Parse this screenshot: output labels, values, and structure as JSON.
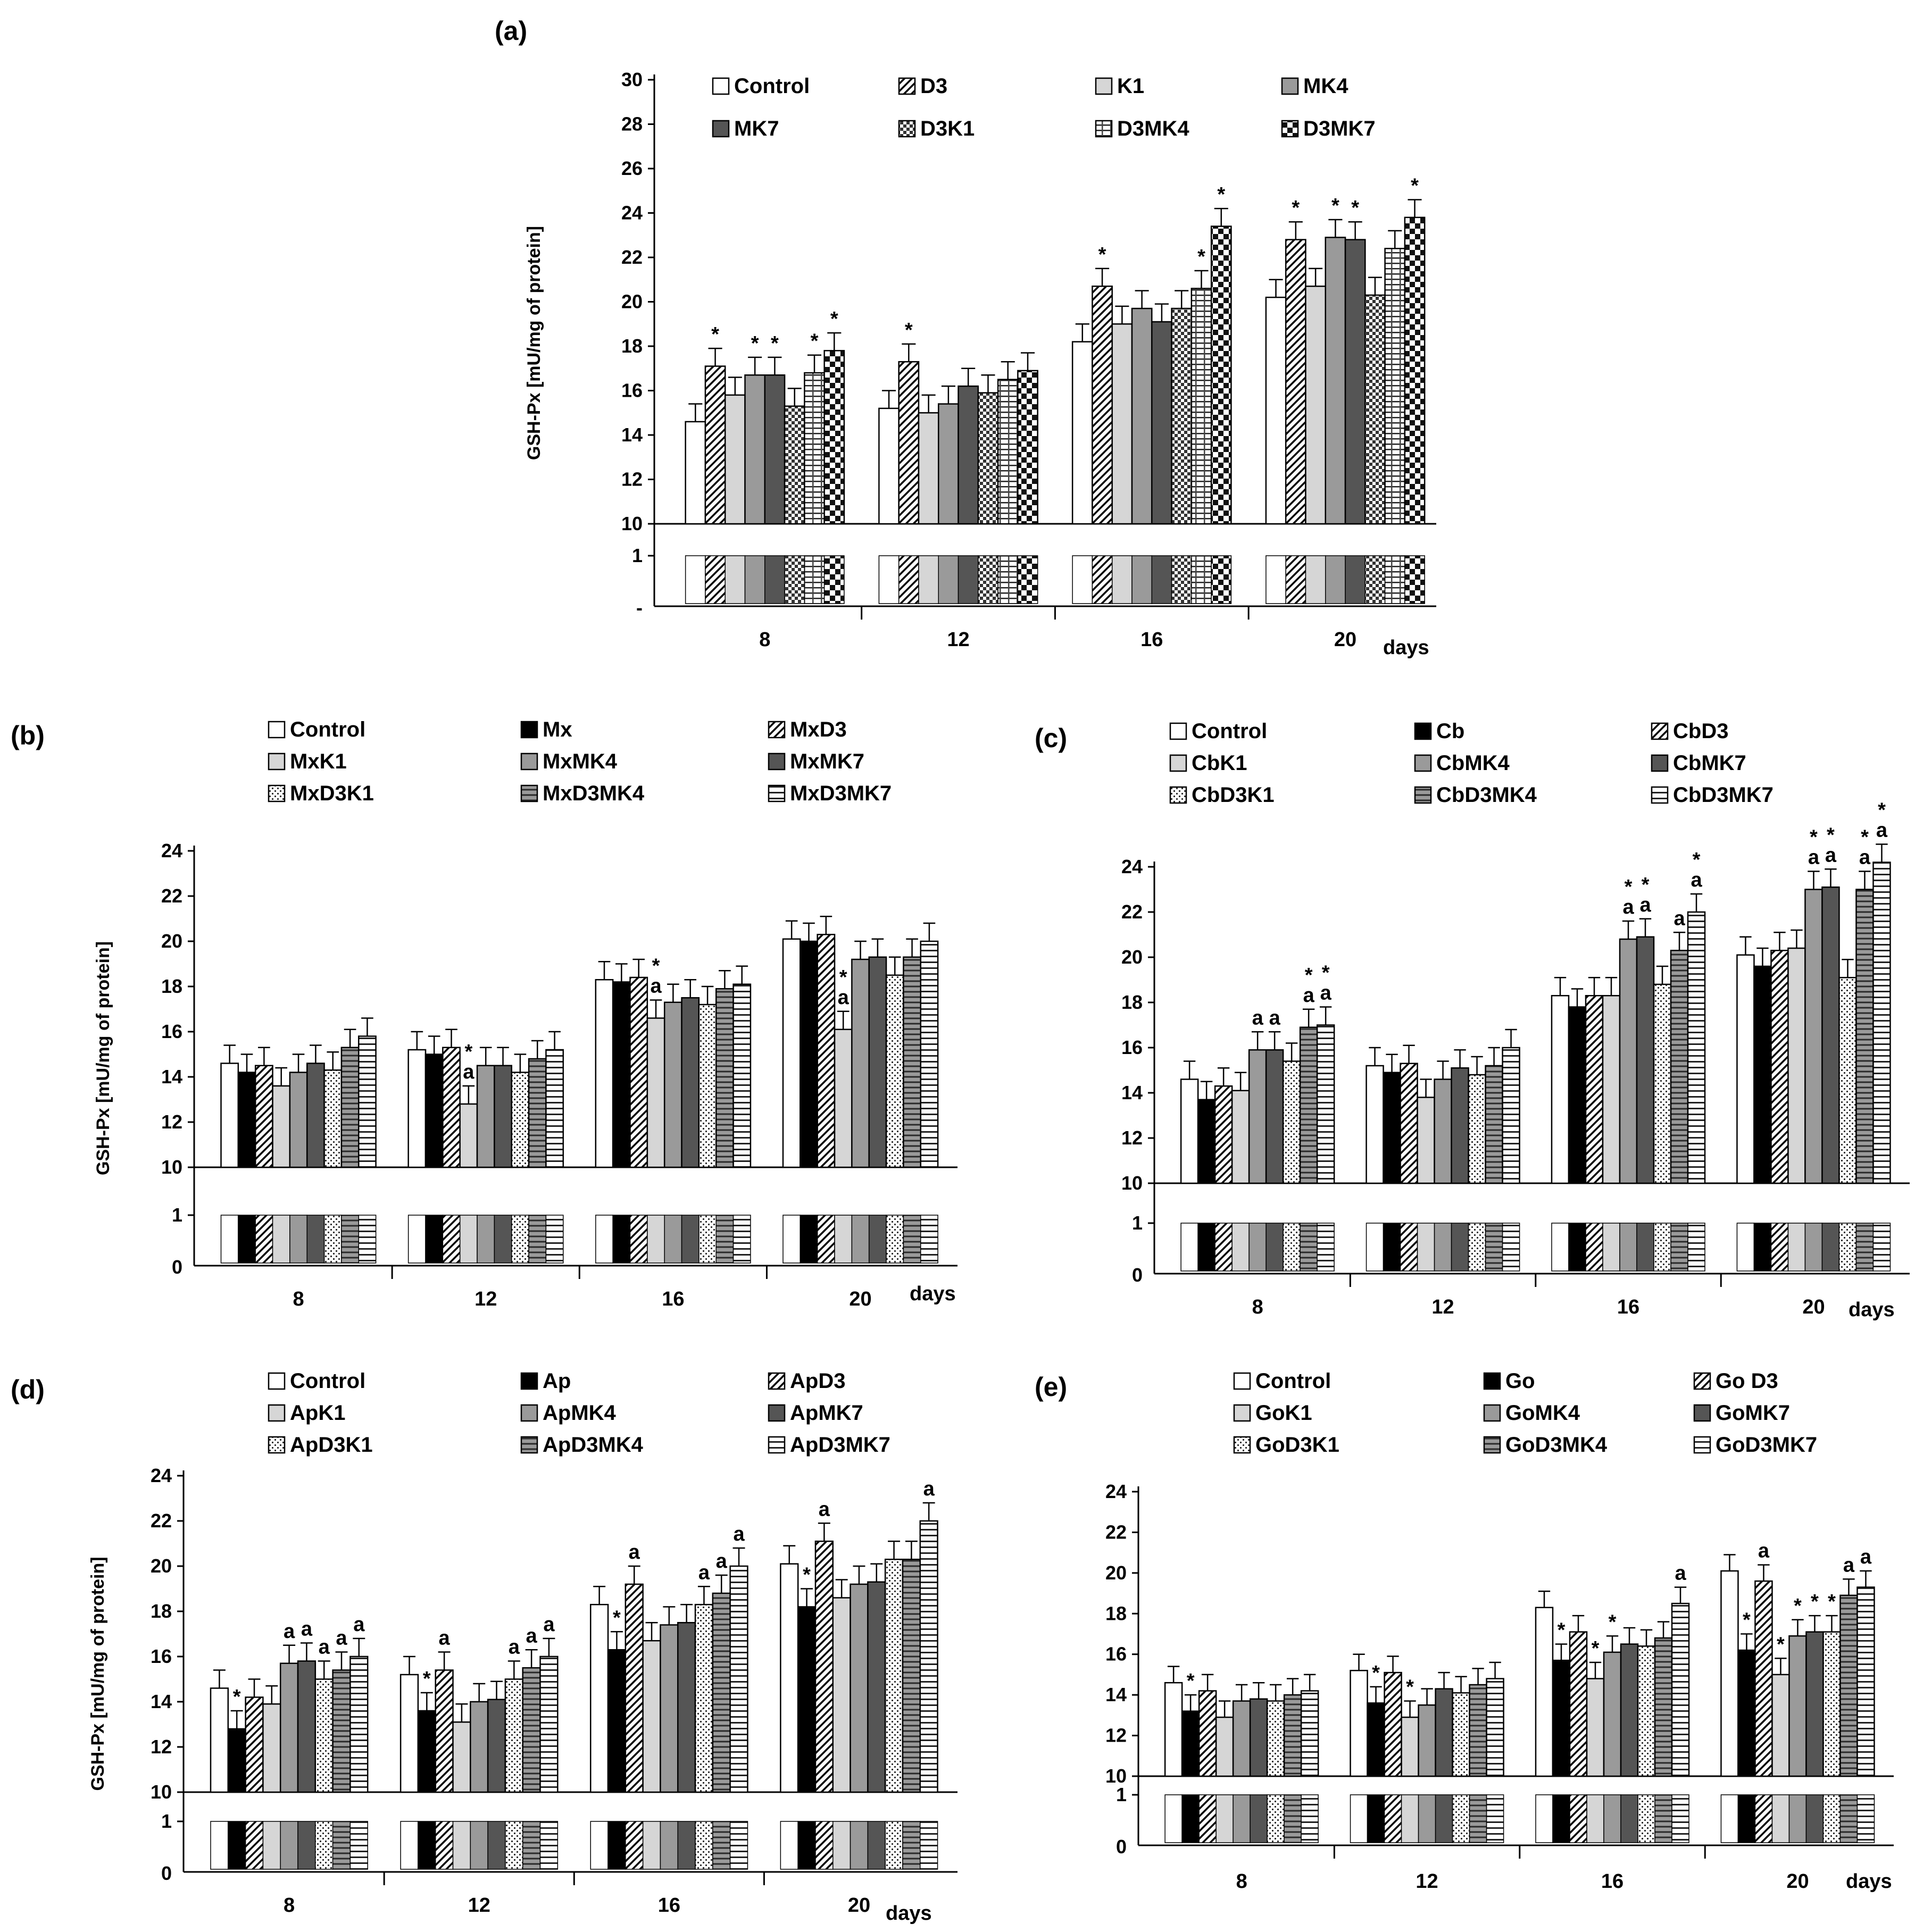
{
  "chart_data": [
    {
      "panel": "(a)",
      "type": "bar",
      "ylabel": "GSH-Px  [mU/mg of protein]",
      "xlabel": "days",
      "ylim": [
        10,
        30
      ],
      "yticks": [
        "10",
        "12",
        "14",
        "16",
        "18",
        "20",
        "22",
        "24",
        "26",
        "28",
        "30"
      ],
      "strip_ticks": [
        "1",
        "-"
      ],
      "categories": [
        "8",
        "12",
        "16",
        "20"
      ],
      "series": [
        {
          "name": "Control",
          "pattern": "white",
          "values": [
            14.6,
            15.2,
            18.2,
            20.2
          ],
          "marks": [
            "",
            "",
            "",
            ""
          ]
        },
        {
          "name": "D3",
          "pattern": "diag",
          "values": [
            17.1,
            17.3,
            20.7,
            22.8
          ],
          "marks": [
            "*",
            "*",
            "*",
            "*"
          ]
        },
        {
          "name": "K1",
          "pattern": "light",
          "values": [
            15.8,
            15.0,
            19.0,
            20.7
          ],
          "marks": [
            "",
            "",
            "",
            ""
          ]
        },
        {
          "name": "MK4",
          "pattern": "mid",
          "values": [
            16.7,
            15.4,
            19.7,
            22.9
          ],
          "marks": [
            "*",
            "",
            "",
            "*"
          ]
        },
        {
          "name": "MK7",
          "pattern": "dark",
          "values": [
            16.7,
            16.2,
            19.1,
            22.8
          ],
          "marks": [
            "*",
            "",
            "",
            "*"
          ]
        },
        {
          "name": "D3K1",
          "pattern": "checker",
          "values": [
            15.3,
            15.9,
            19.7,
            20.3
          ],
          "marks": [
            "",
            "",
            "",
            ""
          ]
        },
        {
          "name": "D3MK4",
          "pattern": "hlinevert",
          "values": [
            16.8,
            16.5,
            20.6,
            22.4
          ],
          "marks": [
            "*",
            "",
            "*",
            ""
          ]
        },
        {
          "name": "D3MK7",
          "pattern": "bigcheck",
          "values": [
            17.8,
            16.9,
            23.4,
            23.8
          ],
          "marks": [
            "*",
            "",
            "*",
            "*"
          ]
        }
      ]
    },
    {
      "panel": "(b)",
      "type": "bar",
      "ylabel": "GSH-Px  [mU/mg of protein]",
      "xlabel": "days",
      "ylim": [
        10,
        24
      ],
      "yticks": [
        "10",
        "12",
        "14",
        "16",
        "18",
        "20",
        "22",
        "24"
      ],
      "strip_ticks": [
        "1",
        "0"
      ],
      "categories": [
        "8",
        "12",
        "16",
        "20"
      ],
      "series": [
        {
          "name": "Control",
          "pattern": "white",
          "values": [
            14.6,
            15.2,
            18.3,
            20.1
          ],
          "marks": [
            "",
            "",
            "",
            ""
          ]
        },
        {
          "name": "Mx",
          "pattern": "black",
          "values": [
            14.2,
            15.0,
            18.2,
            20.0
          ],
          "marks": [
            "",
            "",
            "",
            ""
          ]
        },
        {
          "name": "MxD3",
          "pattern": "diag",
          "values": [
            14.5,
            15.3,
            18.4,
            20.3
          ],
          "marks": [
            "",
            "",
            "",
            ""
          ]
        },
        {
          "name": "MxK1",
          "pattern": "light",
          "values": [
            13.6,
            12.8,
            16.6,
            16.1
          ],
          "marks": [
            "",
            "*a",
            "*a",
            "*a"
          ]
        },
        {
          "name": "MxMK4",
          "pattern": "mid",
          "values": [
            14.2,
            14.5,
            17.3,
            19.2
          ],
          "marks": [
            "",
            "",
            "",
            ""
          ]
        },
        {
          "name": "MxMK7",
          "pattern": "dark",
          "values": [
            14.6,
            14.5,
            17.5,
            19.3
          ],
          "marks": [
            "",
            "",
            "",
            ""
          ]
        },
        {
          "name": "MxD3K1",
          "pattern": "dots",
          "values": [
            14.3,
            14.2,
            17.2,
            18.5
          ],
          "marks": [
            "",
            "",
            "",
            ""
          ]
        },
        {
          "name": "MxD3MK4",
          "pattern": "hlinebord",
          "values": [
            15.3,
            14.8,
            17.9,
            19.3
          ],
          "marks": [
            "",
            "",
            "",
            ""
          ]
        },
        {
          "name": "MxD3MK7",
          "pattern": "hline",
          "values": [
            15.8,
            15.2,
            18.1,
            20.0
          ],
          "marks": [
            "",
            "",
            "",
            ""
          ]
        }
      ]
    },
    {
      "panel": "(c)",
      "type": "bar",
      "ylabel": "",
      "xlabel": "days",
      "ylim": [
        10,
        24
      ],
      "yticks": [
        "10",
        "12",
        "14",
        "16",
        "18",
        "20",
        "22",
        "24"
      ],
      "strip_ticks": [
        "1",
        "0"
      ],
      "categories": [
        "8",
        "12",
        "16",
        "20"
      ],
      "series": [
        {
          "name": "Control",
          "pattern": "white",
          "values": [
            14.6,
            15.2,
            18.3,
            20.1
          ],
          "marks": [
            "",
            "",
            "",
            ""
          ]
        },
        {
          "name": "Cb",
          "pattern": "black",
          "values": [
            13.7,
            14.9,
            17.8,
            19.6
          ],
          "marks": [
            "",
            "",
            "",
            ""
          ]
        },
        {
          "name": "CbD3",
          "pattern": "diag",
          "values": [
            14.3,
            15.3,
            18.3,
            20.3
          ],
          "marks": [
            "",
            "",
            "",
            ""
          ]
        },
        {
          "name": "CbK1",
          "pattern": "light",
          "values": [
            14.1,
            13.8,
            18.3,
            20.4
          ],
          "marks": [
            "",
            "",
            "",
            ""
          ]
        },
        {
          "name": "CbMK4",
          "pattern": "mid",
          "values": [
            15.9,
            14.6,
            20.8,
            23.0
          ],
          "marks": [
            "a",
            "",
            "*a",
            "*a"
          ]
        },
        {
          "name": "CbMK7",
          "pattern": "dark",
          "values": [
            15.9,
            15.1,
            20.9,
            23.1
          ],
          "marks": [
            "a",
            "",
            "*a",
            "*a"
          ]
        },
        {
          "name": "CbD3K1",
          "pattern": "dots",
          "values": [
            15.4,
            14.8,
            18.8,
            19.1
          ],
          "marks": [
            "",
            "",
            "",
            ""
          ]
        },
        {
          "name": "CbD3MK4",
          "pattern": "hlinebord",
          "values": [
            16.9,
            15.2,
            20.3,
            23.0
          ],
          "marks": [
            "*a",
            "",
            "a",
            "*a"
          ]
        },
        {
          "name": "CbD3MK7",
          "pattern": "hline",
          "values": [
            17.0,
            16.0,
            22.0,
            24.2
          ],
          "marks": [
            "*a",
            "",
            "*a",
            "*a"
          ]
        }
      ]
    },
    {
      "panel": "(d)",
      "type": "bar",
      "ylabel": "GSH-Px  [mU/mg of protein]",
      "xlabel": "days",
      "ylim": [
        10,
        24
      ],
      "yticks": [
        "10",
        "12",
        "14",
        "16",
        "18",
        "20",
        "22",
        "24"
      ],
      "strip_ticks": [
        "1",
        "0"
      ],
      "categories": [
        "8",
        "12",
        "16",
        "20"
      ],
      "series": [
        {
          "name": "Control",
          "pattern": "white",
          "values": [
            14.6,
            15.2,
            18.3,
            20.1
          ],
          "marks": [
            "",
            "",
            "",
            ""
          ]
        },
        {
          "name": "Ap",
          "pattern": "black",
          "values": [
            12.8,
            13.6,
            16.3,
            18.2
          ],
          "marks": [
            "*",
            "*",
            "*",
            "*"
          ]
        },
        {
          "name": "ApD3",
          "pattern": "diag",
          "values": [
            14.2,
            15.4,
            19.2,
            21.1
          ],
          "marks": [
            "",
            "a",
            "a",
            "a"
          ]
        },
        {
          "name": "ApK1",
          "pattern": "light",
          "values": [
            13.9,
            13.1,
            16.7,
            18.6
          ],
          "marks": [
            "",
            "",
            "",
            ""
          ]
        },
        {
          "name": "ApMK4",
          "pattern": "mid",
          "values": [
            15.7,
            14.0,
            17.4,
            19.2
          ],
          "marks": [
            "a",
            "",
            "",
            ""
          ]
        },
        {
          "name": "ApMK7",
          "pattern": "dark",
          "values": [
            15.8,
            14.1,
            17.5,
            19.3
          ],
          "marks": [
            "a",
            "",
            "",
            ""
          ]
        },
        {
          "name": "ApD3K1",
          "pattern": "dots",
          "values": [
            15.0,
            15.0,
            18.3,
            20.3
          ],
          "marks": [
            "a",
            "a",
            "a",
            ""
          ]
        },
        {
          "name": "ApD3MK4",
          "pattern": "hlinebord",
          "values": [
            15.4,
            15.5,
            18.8,
            20.3
          ],
          "marks": [
            "a",
            "a",
            "a",
            ""
          ]
        },
        {
          "name": "ApD3MK7",
          "pattern": "hline",
          "values": [
            16.0,
            16.0,
            20.0,
            22.0
          ],
          "marks": [
            "a",
            "a",
            "a",
            "a"
          ]
        }
      ]
    },
    {
      "panel": "(e)",
      "type": "bar",
      "ylabel": "",
      "xlabel": "days",
      "ylim": [
        10,
        24
      ],
      "yticks": [
        "10",
        "12",
        "14",
        "16",
        "18",
        "20",
        "22",
        "24"
      ],
      "strip_ticks": [
        "1",
        "0"
      ],
      "categories": [
        "8",
        "12",
        "16",
        "20"
      ],
      "series": [
        {
          "name": "Control",
          "pattern": "white",
          "values": [
            14.6,
            15.2,
            18.3,
            20.1
          ],
          "marks": [
            "",
            "",
            "",
            ""
          ]
        },
        {
          "name": "Go",
          "pattern": "black",
          "values": [
            13.2,
            13.6,
            15.7,
            16.2
          ],
          "marks": [
            "*",
            "*",
            "*",
            "*"
          ]
        },
        {
          "name": "Go D3",
          "pattern": "diag",
          "values": [
            14.2,
            15.1,
            17.1,
            19.6
          ],
          "marks": [
            "",
            "",
            "",
            "a"
          ]
        },
        {
          "name": "GoK1",
          "pattern": "light",
          "values": [
            12.9,
            12.9,
            14.8,
            15.0
          ],
          "marks": [
            "",
            "*",
            "*",
            "*"
          ]
        },
        {
          "name": "GoMK4",
          "pattern": "mid",
          "values": [
            13.7,
            13.5,
            16.1,
            16.9
          ],
          "marks": [
            "",
            "",
            "*",
            "*"
          ]
        },
        {
          "name": "GoMK7",
          "pattern": "dark",
          "values": [
            13.8,
            14.3,
            16.5,
            17.1
          ],
          "marks": [
            "",
            "",
            "",
            "*"
          ]
        },
        {
          "name": "GoD3K1",
          "pattern": "dots",
          "values": [
            13.7,
            14.1,
            16.4,
            17.1
          ],
          "marks": [
            "",
            "",
            "",
            "*"
          ]
        },
        {
          "name": "GoD3MK4",
          "pattern": "hlinebord",
          "values": [
            14.0,
            14.5,
            16.8,
            18.9
          ],
          "marks": [
            "",
            "",
            "",
            "a"
          ]
        },
        {
          "name": "GoD3MK7",
          "pattern": "hline",
          "values": [
            14.2,
            14.8,
            18.5,
            19.3
          ],
          "marks": [
            "",
            "",
            "a",
            "a"
          ]
        }
      ]
    }
  ]
}
